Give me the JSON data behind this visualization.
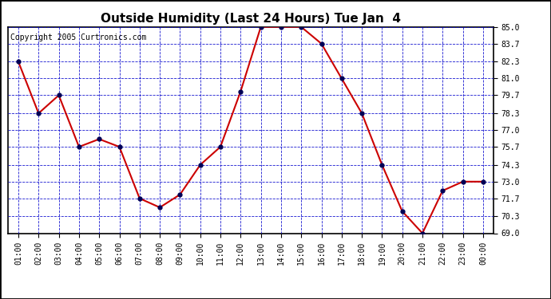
{
  "title": "Outside Humidity (Last 24 Hours) Tue Jan  4",
  "copyright": "Copyright 2005 Curtronics.com",
  "x_labels": [
    "01:00",
    "02:00",
    "03:00",
    "04:00",
    "05:00",
    "06:00",
    "07:00",
    "08:00",
    "09:00",
    "10:00",
    "11:00",
    "12:00",
    "13:00",
    "14:00",
    "15:00",
    "16:00",
    "17:00",
    "18:00",
    "19:00",
    "20:00",
    "21:00",
    "22:00",
    "23:00",
    "00:00"
  ],
  "y_values": [
    82.3,
    78.3,
    79.7,
    75.7,
    76.3,
    75.7,
    71.7,
    71.0,
    72.0,
    74.3,
    75.7,
    80.0,
    85.0,
    85.0,
    85.0,
    83.7,
    81.0,
    78.3,
    74.3,
    70.7,
    69.0,
    72.3,
    73.0,
    73.0
  ],
  "ylim": [
    69.0,
    85.0
  ],
  "y_ticks": [
    69.0,
    70.3,
    71.7,
    73.0,
    74.3,
    75.7,
    77.0,
    78.3,
    79.7,
    81.0,
    82.3,
    83.7,
    85.0
  ],
  "line_color": "#cc0000",
  "marker_color": "#000055",
  "grid_color": "#0000cc",
  "bg_color": "#ffffff",
  "plot_bg_color": "#ffffff",
  "title_fontsize": 11,
  "copyright_fontsize": 7,
  "tick_fontsize": 7,
  "outer_border_color": "#000000"
}
